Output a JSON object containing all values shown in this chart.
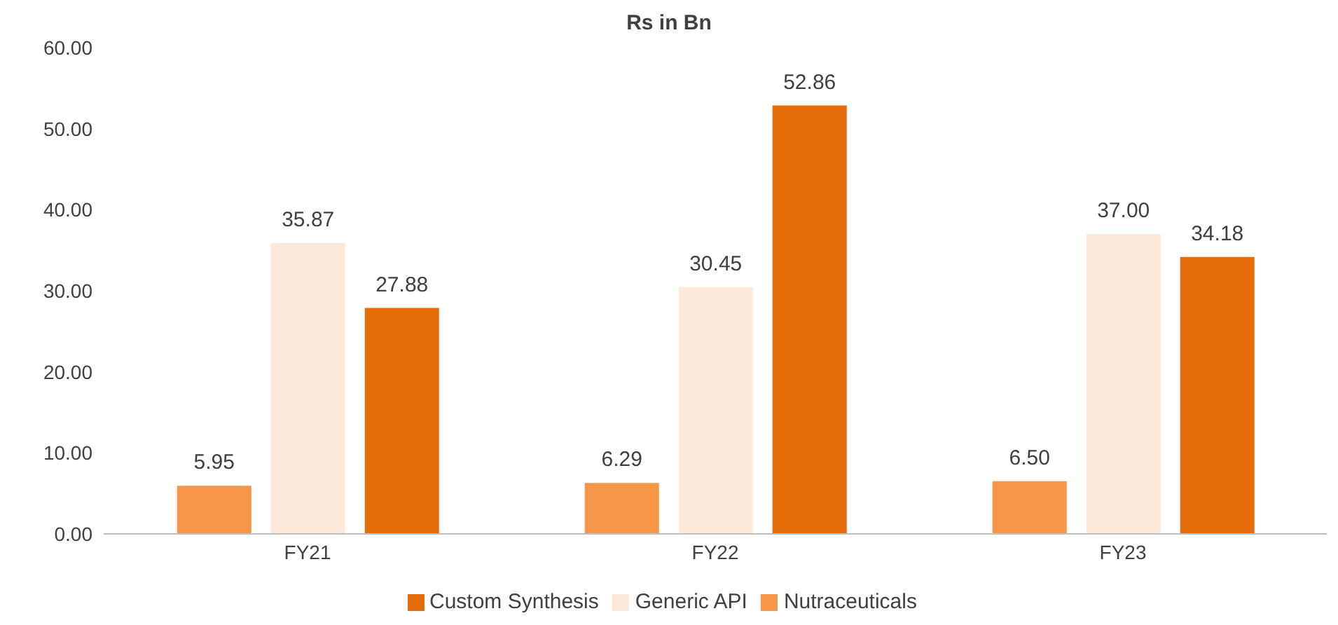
{
  "chart_data": {
    "type": "bar",
    "title": "Rs in Bn",
    "categories": [
      "FY21",
      "FY22",
      "FY23"
    ],
    "series": [
      {
        "name": "Nutraceuticals",
        "color": "#f79646",
        "values": [
          5.95,
          6.29,
          6.5
        ],
        "value_labels": [
          "5.95",
          "6.29",
          "6.50"
        ]
      },
      {
        "name": "Generic API",
        "color": "#fde9d9",
        "values": [
          35.87,
          30.45,
          37.0
        ],
        "value_labels": [
          "35.87",
          "30.45",
          "37.00"
        ]
      },
      {
        "name": "Custom Synthesis",
        "color": "#e46c0a",
        "values": [
          27.88,
          52.86,
          34.18
        ],
        "value_labels": [
          "27.88",
          "52.86",
          "34.18"
        ]
      }
    ],
    "ylim": [
      0,
      60
    ],
    "yticks": [
      {
        "value": 0,
        "label": "0.00"
      },
      {
        "value": 10,
        "label": "10.00"
      },
      {
        "value": 20,
        "label": "20.00"
      },
      {
        "value": 30,
        "label": "30.00"
      },
      {
        "value": 40,
        "label": "40.00"
      },
      {
        "value": 50,
        "label": "50.00"
      },
      {
        "value": 60,
        "label": "60.00"
      }
    ],
    "grid": false,
    "legend": "bottom"
  }
}
